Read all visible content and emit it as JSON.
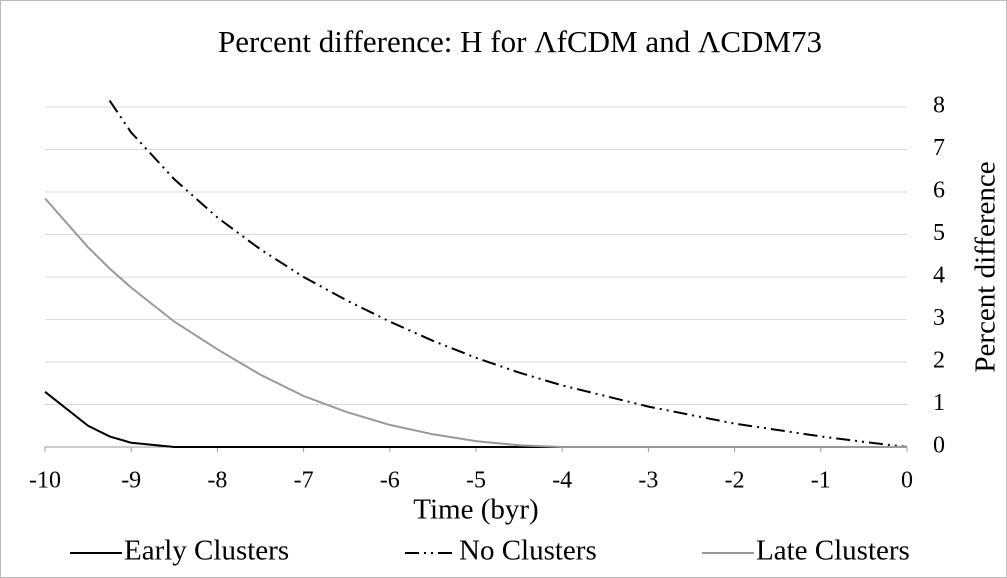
{
  "chart_data": {
    "type": "line",
    "title": "Percent difference: H for ΛfCDM and ΛCDM73",
    "x_label": "Time (byr)",
    "y_label": "Percent difference",
    "x": [
      -10,
      -9.5,
      -9.25,
      -9,
      -8.5,
      -8,
      -7.5,
      -7,
      -6.5,
      -6,
      -5.5,
      -5,
      -4.5,
      -4,
      -3.5,
      -3,
      -2.5,
      -2,
      -1.5,
      -1,
      -0.5,
      0
    ],
    "series": [
      {
        "name": "Early Clusters",
        "color": "#000000",
        "line_style": "solid",
        "values": [
          1.3,
          0.5,
          0.25,
          0.1,
          0,
          0,
          0,
          0,
          0,
          0,
          0,
          0,
          0,
          0,
          0,
          0,
          0,
          0,
          0,
          0,
          0,
          0
        ]
      },
      {
        "name": "No Clusters",
        "color": "#000000",
        "line_style": "dash-dot-dot",
        "values": [
          null,
          null,
          8.15,
          7.4,
          6.3,
          5.4,
          4.65,
          4.0,
          3.45,
          2.95,
          2.5,
          2.1,
          1.75,
          1.45,
          1.2,
          0.95,
          0.75,
          0.55,
          0.4,
          0.25,
          0.12,
          0
        ]
      },
      {
        "name": "Late Clusters",
        "color": "#999999",
        "line_style": "solid",
        "values": [
          5.85,
          4.7,
          4.2,
          3.75,
          2.95,
          2.3,
          1.7,
          1.2,
          0.82,
          0.52,
          0.3,
          0.14,
          0.04,
          0,
          0,
          0,
          0,
          0,
          0,
          0,
          0,
          0
        ]
      }
    ],
    "xlim": [
      -10,
      0
    ],
    "xticks": [
      -10,
      -9,
      -8,
      -7,
      -6,
      -5,
      -4,
      -3,
      -2,
      -1,
      0
    ],
    "ylim": [
      0,
      8
    ],
    "yticks": [
      0,
      1,
      2,
      3,
      4,
      5,
      6,
      7,
      8
    ],
    "y_axis_side": "right",
    "grid": true,
    "legend": "bottom"
  }
}
